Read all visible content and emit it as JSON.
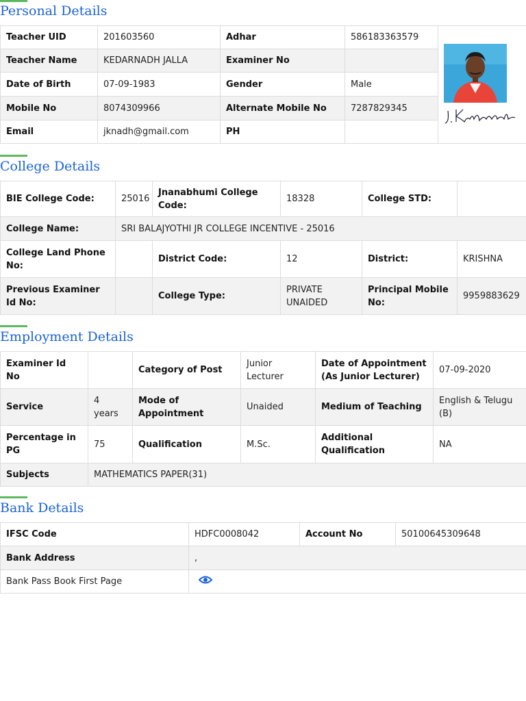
{
  "personal": {
    "title": "Personal Details",
    "rows": [
      [
        "Teacher UID",
        "201603560",
        "Adhar",
        "586183363579"
      ],
      [
        "Teacher Name",
        "KEDARNADH JALLA",
        "Examiner No",
        ""
      ],
      [
        "Date of Birth",
        "07-09-1983",
        "Gender",
        "Male"
      ],
      [
        "Mobile No",
        "8074309966",
        "Alternate Mobile No",
        "7287829345"
      ],
      [
        "Email",
        "jknadh@gmail.com",
        "PH",
        ""
      ]
    ],
    "signature_text": "J. Kedarnadh"
  },
  "college": {
    "title": "College Details",
    "bie_code_label": "BIE College Code:",
    "bie_code_value": "25016",
    "jnanabhumi_label": "Jnanabhumi College Code:",
    "jnanabhumi_value": "18328",
    "std_label": "College STD:",
    "std_value": "",
    "name_label": "College Name:",
    "name_value": "SRI BALAJYOTHI JR COLLEGE INCENTIVE - 25016",
    "land_phone_label": "College Land Phone No:",
    "land_phone_value": "",
    "district_code_label": "District Code:",
    "district_code_value": "12",
    "district_label": "District:",
    "district_value": "KRISHNA",
    "prev_examiner_label": "Previous Examiner Id No:",
    "prev_examiner_value": "",
    "type_label": "College Type:",
    "type_value": "PRIVATE UNAIDED",
    "principal_label": "Principal Mobile No:",
    "principal_value": "9959883629"
  },
  "employment": {
    "title": "Employment Details",
    "examiner_id_label": "Examiner Id No",
    "examiner_id_value": "",
    "category_label": "Category of Post",
    "category_value": "Junior Lecturer",
    "doa_label": "Date of Appointment (As Junior Lecturer)",
    "doa_value": "07-09-2020",
    "service_label": "Service",
    "service_value": "4 years",
    "mode_label": "Mode of Appointment",
    "mode_value": "Unaided",
    "medium_label": "Medium of Teaching",
    "medium_value": "English & Telugu (B)",
    "pg_label": "Percentage in PG",
    "pg_value": "75",
    "qual_label": "Qualification",
    "qual_value": "M.Sc.",
    "addl_label": "Additional Qualification",
    "addl_value": "NA",
    "subjects_label": "Subjects",
    "subjects_value": "MATHEMATICS PAPER(31)"
  },
  "bank": {
    "title": "Bank Details",
    "ifsc_label": "IFSC Code",
    "ifsc_value": "HDFC0008042",
    "account_label": "Account No",
    "account_value": "50100645309648",
    "address_label": "Bank Address",
    "address_value": ",",
    "passbook_label": "Bank Pass Book First Page",
    "passbook_icon": "eye-icon"
  },
  "colors": {
    "accent_blue": "#1a62d6",
    "accent_green": "#5cb85c",
    "row_alt": "#f2f2f2",
    "border": "#dcdcdc"
  }
}
